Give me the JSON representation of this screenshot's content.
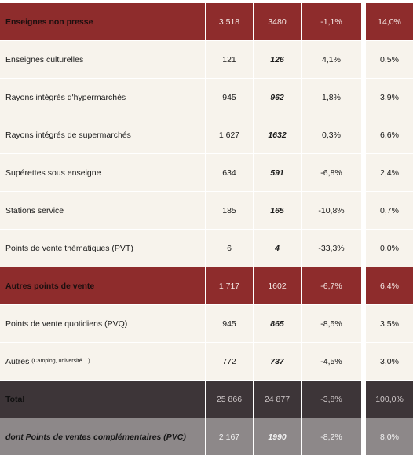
{
  "rows": [
    {
      "label": "Enseignes non presse",
      "v1": "3 518",
      "v2": "3480",
      "ev": "-1,1%",
      "pt": "14,0%"
    },
    {
      "label": "Enseignes culturelles",
      "v1": "121",
      "v2": "126",
      "ev": "4,1%",
      "pt": "0,5%"
    },
    {
      "label": "Rayons intégrés d'hypermarchés",
      "v1": "945",
      "v2": "962",
      "ev": "1,8%",
      "pt": "3,9%"
    },
    {
      "label": "Rayons intégrés de supermarchés",
      "v1": "1 627",
      "v2": "1632",
      "ev": "0,3%",
      "pt": "6,6%"
    },
    {
      "label": "Supérettes sous enseigne",
      "v1": "634",
      "v2": "591",
      "ev": "-6,8%",
      "pt": "2,4%"
    },
    {
      "label": "Stations service",
      "v1": "185",
      "v2": "165",
      "ev": "-10,8%",
      "pt": "0,7%"
    },
    {
      "label": "Points de vente thématiques (PVT)",
      "v1": "6",
      "v2": "4",
      "ev": "-33,3%",
      "pt": "0,0%"
    },
    {
      "label": "Autres points de vente",
      "v1": "1 717",
      "v2": "1602",
      "ev": "-6,7%",
      "pt": "6,4%"
    },
    {
      "label": "Points de vente quotidiens (PVQ)",
      "v1": "945",
      "v2": "865",
      "ev": "-8,5%",
      "pt": "3,5%"
    },
    {
      "label": "Autres",
      "label_small": "(Camping, université ...)",
      "v1": "772",
      "v2": "737",
      "ev": "-4,5%",
      "pt": "3,0%"
    },
    {
      "label": "Total",
      "v1": "25 866",
      "v2": "24 877",
      "ev": "-3,8%",
      "pt": "100,0%"
    },
    {
      "label": "dont Points de ventes complémentaires (PVC)",
      "v1": "2 167",
      "v2": "1990",
      "ev": "-8,2%",
      "pt": "8,0%"
    }
  ],
  "colors": {
    "highlight_row": "#8e2c2c",
    "light_row": "#f7f3ec",
    "total_row": "#3d3538",
    "pvc_row": "#8d8889"
  }
}
